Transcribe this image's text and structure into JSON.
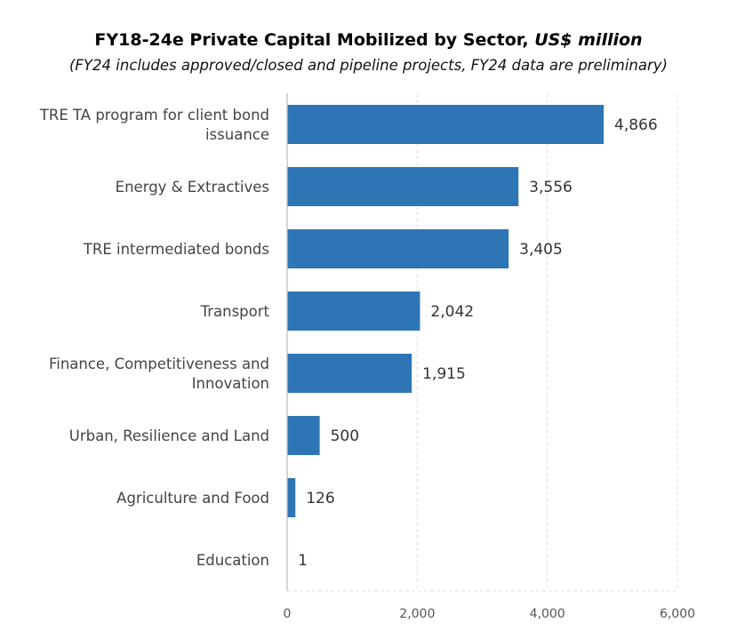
{
  "chart_data": {
    "type": "bar",
    "orientation": "horizontal",
    "title": "FY18-24e Private Capital Mobilized by Sector,",
    "title_italic": "US$ million",
    "subtitle": "(FY24 includes approved/closed and pipeline projects, FY24 data are preliminary)",
    "categories": [
      [
        "TRE TA program for client bond",
        "issuance"
      ],
      [
        "Energy & Extractives"
      ],
      [
        "TRE intermediated bonds"
      ],
      [
        "Transport"
      ],
      [
        "Finance, Competitiveness and",
        "Innovation"
      ],
      [
        "Urban, Resilience and Land"
      ],
      [
        "Agriculture and Food"
      ],
      [
        "Education"
      ]
    ],
    "values": [
      4866,
      3556,
      3405,
      2042,
      1915,
      500,
      126,
      1
    ],
    "value_labels": [
      "4,866",
      "3,556",
      "3,405",
      "2,042",
      "1,915",
      "500",
      "126",
      "1"
    ],
    "xlim": [
      0,
      6000
    ],
    "xticks": [
      0,
      2000,
      4000,
      6000
    ],
    "xtick_labels": [
      "0",
      "2,000",
      "4,000",
      "6,000"
    ],
    "xlabel": "",
    "ylabel": "",
    "grid": "vertical dashed",
    "legend": "none",
    "bar_color": "#2E75B6"
  }
}
